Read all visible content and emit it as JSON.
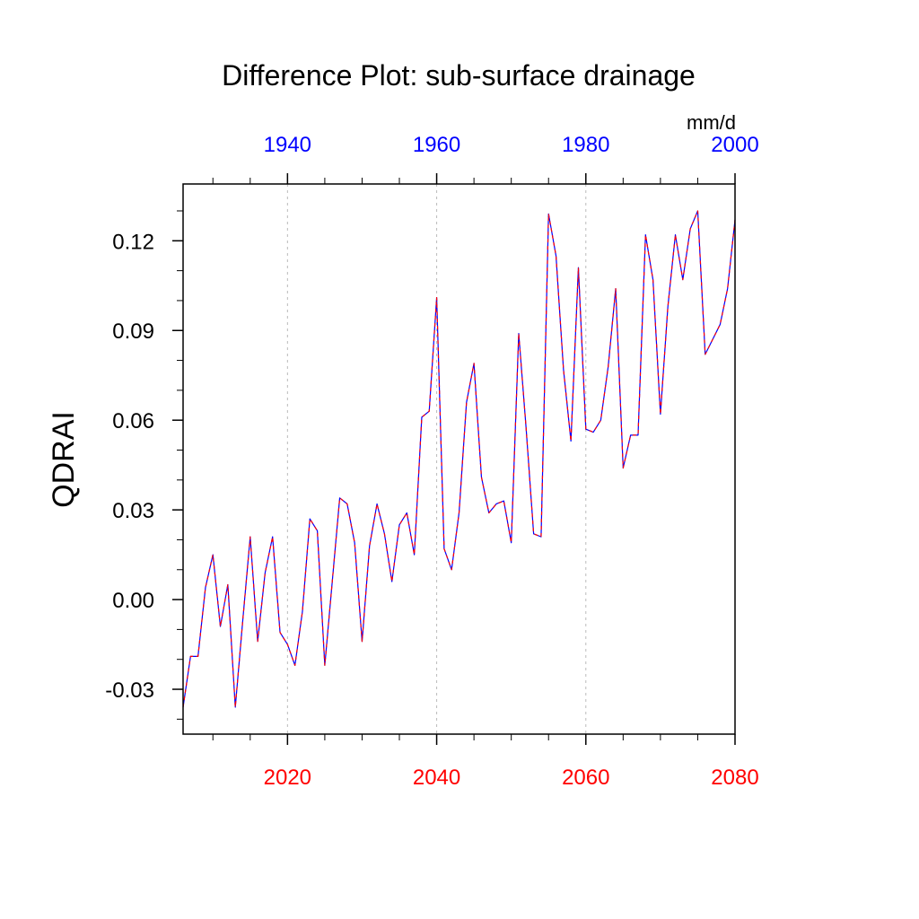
{
  "chart_data": {
    "type": "line",
    "title": "Difference Plot: sub-surface drainage",
    "ylabel": "QDRAI",
    "units_label": "mm/d",
    "bottom_axis": {
      "range": [
        2006,
        2080
      ],
      "ticks": [
        2020,
        2040,
        2060,
        2080
      ],
      "tick_labels": [
        "2020",
        "2040",
        "2060",
        "2080"
      ],
      "color": "#ff0000"
    },
    "top_axis": {
      "range": [
        1926,
        2000
      ],
      "ticks": [
        1940,
        1960,
        1980,
        2000
      ],
      "tick_labels": [
        "1940",
        "1960",
        "1980",
        "2000"
      ],
      "color": "#0000ff"
    },
    "y_axis": {
      "range": [
        -0.045,
        0.139
      ],
      "ticks": [
        -0.03,
        0.0,
        0.03,
        0.06,
        0.09,
        0.12
      ],
      "tick_labels": [
        "-0.03",
        "0.00",
        "0.03",
        "0.06",
        "0.09",
        "0.12"
      ]
    },
    "grid": "vertical dashed at major bottom ticks",
    "series": [
      {
        "name": "sub-surface drainage difference",
        "line_color": "#0000ff",
        "dash_color": "#ff0000",
        "x": [
          2006,
          2007,
          2008,
          2009,
          2010,
          2011,
          2012,
          2013,
          2014,
          2015,
          2016,
          2017,
          2018,
          2019,
          2020,
          2021,
          2022,
          2023,
          2024,
          2025,
          2026,
          2027,
          2028,
          2029,
          2030,
          2031,
          2032,
          2033,
          2034,
          2035,
          2036,
          2037,
          2038,
          2039,
          2040,
          2041,
          2042,
          2043,
          2044,
          2045,
          2046,
          2047,
          2048,
          2049,
          2050,
          2051,
          2052,
          2053,
          2054,
          2055,
          2056,
          2057,
          2058,
          2059,
          2060,
          2061,
          2062,
          2063,
          2064,
          2065,
          2066,
          2067,
          2068,
          2069,
          2070,
          2071,
          2072,
          2073,
          2074,
          2075,
          2076,
          2077,
          2078,
          2079,
          2080
        ],
        "y": [
          -0.036,
          -0.019,
          -0.019,
          0.004,
          0.015,
          -0.009,
          0.005,
          -0.036,
          -0.007,
          0.021,
          -0.014,
          0.009,
          0.021,
          -0.011,
          -0.015,
          -0.022,
          -0.004,
          0.027,
          0.023,
          -0.022,
          0.006,
          0.034,
          0.032,
          0.019,
          -0.014,
          0.018,
          0.032,
          0.022,
          0.006,
          0.025,
          0.029,
          0.015,
          0.061,
          0.063,
          0.101,
          0.017,
          0.01,
          0.029,
          0.066,
          0.079,
          0.041,
          0.029,
          0.032,
          0.033,
          0.019,
          0.089,
          0.057,
          0.022,
          0.021,
          0.129,
          0.115,
          0.077,
          0.053,
          0.111,
          0.057,
          0.056,
          0.06,
          0.078,
          0.104,
          0.044,
          0.055,
          0.055,
          0.122,
          0.107,
          0.062,
          0.098,
          0.122,
          0.107,
          0.124,
          0.13,
          0.082,
          0.087,
          0.092,
          0.104,
          0.127
        ]
      }
    ]
  }
}
